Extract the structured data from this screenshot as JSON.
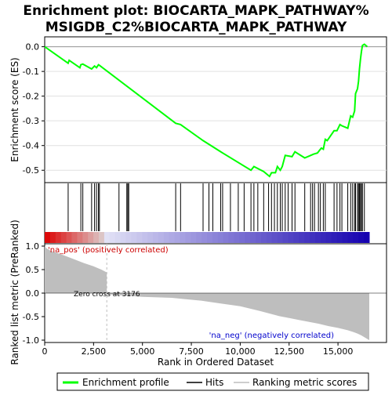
{
  "title_line1": "Enrichment plot: BIOCARTA_MAPK_PATHWAY%",
  "title_line2": "MSIGDB_C2%BIOCARTA_MAPK_PATHWAY",
  "colors": {
    "es_line": "#00ff00",
    "hits": "#000000",
    "metric_fill": "#bebebe",
    "pos_label": "#cc0000",
    "neg_label": "#0000cc",
    "zero_line": "#bebebe"
  },
  "legend": {
    "es": "Enrichment profile",
    "hits": "Hits",
    "metric": "Ranking metric scores"
  },
  "chart_data": {
    "type": "line",
    "n_genes": 16600,
    "es_panel": {
      "ylabel": "Enrichment score (ES)",
      "ylim": [
        -0.55,
        0.04
      ],
      "yticks": [
        0.0,
        -0.1,
        -0.2,
        -0.3,
        -0.4,
        -0.5
      ],
      "ytick_labels": [
        "0.0",
        "-0.1",
        "-0.2",
        "-0.3",
        "-0.4",
        "-0.5"
      ],
      "x": [
        0,
        1200,
        1250,
        1800,
        1850,
        1950,
        2400,
        2550,
        2650,
        2750,
        2800,
        6700,
        6950,
        8100,
        8400,
        9000,
        9100,
        10550,
        10700,
        11200,
        11500,
        11600,
        11800,
        11900,
        12050,
        12150,
        12300,
        12650,
        12800,
        13300,
        13600,
        13750,
        13950,
        14050,
        14150,
        14250,
        14350,
        14450,
        14800,
        14950,
        15100,
        15200,
        15500,
        15650,
        15750,
        15850,
        15900,
        16000,
        16050,
        16100,
        16150,
        16200,
        16250,
        16350,
        16500
      ],
      "y": [
        0.0,
        -0.067,
        -0.055,
        -0.085,
        -0.073,
        -0.07,
        -0.09,
        -0.078,
        -0.085,
        -0.073,
        -0.075,
        -0.31,
        -0.315,
        -0.38,
        -0.395,
        -0.425,
        -0.43,
        -0.5,
        -0.485,
        -0.505,
        -0.525,
        -0.51,
        -0.51,
        -0.485,
        -0.5,
        -0.485,
        -0.44,
        -0.445,
        -0.425,
        -0.45,
        -0.44,
        -0.435,
        -0.43,
        -0.42,
        -0.41,
        -0.415,
        -0.375,
        -0.38,
        -0.34,
        -0.34,
        -0.315,
        -0.32,
        -0.33,
        -0.28,
        -0.285,
        -0.26,
        -0.19,
        -0.17,
        -0.14,
        -0.09,
        -0.05,
        -0.02,
        0.005,
        0.01,
        0.0
      ]
    },
    "hits": [
      1200,
      1850,
      1950,
      2400,
      2550,
      2650,
      2750,
      2800,
      3800,
      4200,
      4250,
      4300,
      6700,
      6950,
      8100,
      8400,
      8600,
      9000,
      9100,
      9500,
      9900,
      10200,
      10550,
      10700,
      10900,
      11200,
      11450,
      11600,
      11750,
      11900,
      12050,
      12150,
      12300,
      12450,
      12650,
      12800,
      13300,
      13600,
      13700,
      13800,
      14000,
      14100,
      14250,
      14350,
      14800,
      14950,
      15100,
      15200,
      15500,
      15650,
      15750,
      15850,
      15900,
      16000,
      16050,
      16100,
      16150,
      16200,
      16250,
      16350
    ],
    "ranking_panel": {
      "ylabel": "Ranked list metric (PreRanked)",
      "xlabel": "Rank in Ordered Dataset",
      "ylim": [
        -1.05,
        1.05
      ],
      "yticks": [
        1.0,
        0.5,
        0.0,
        -0.5,
        -1.0
      ],
      "ytick_labels": [
        "1.0",
        "0.5",
        "0.0",
        "-0.5",
        "-1.0"
      ],
      "xticks": [
        0,
        2500,
        5000,
        7500,
        10000,
        12500,
        15000
      ],
      "xtick_labels": [
        "0",
        "2,500",
        "5,000",
        "7,500",
        "10,000",
        "12,500",
        "15,000"
      ],
      "metric_x": [
        0,
        100,
        300,
        600,
        1000,
        1500,
        2000,
        2500,
        2900,
        3176,
        3177,
        4000,
        5000,
        6500,
        7000,
        8000,
        9000,
        10000,
        11000,
        12000,
        12500,
        13000,
        13500,
        14000,
        14500,
        15000,
        15500,
        15800,
        16000,
        16200,
        16400,
        16600
      ],
      "metric_y": [
        1.0,
        0.95,
        0.9,
        0.86,
        0.8,
        0.72,
        0.64,
        0.57,
        0.5,
        0.44,
        -0.02,
        -0.05,
        -0.08,
        -0.1,
        -0.12,
        -0.16,
        -0.22,
        -0.28,
        -0.38,
        -0.49,
        -0.53,
        -0.57,
        -0.61,
        -0.65,
        -0.7,
        -0.74,
        -0.79,
        -0.83,
        -0.86,
        -0.9,
        -0.95,
        -1.0
      ],
      "zero_cross_label": "Zero cross at 3176",
      "zero_cross_x": 3176,
      "pos_label": "'na_pos' (positively correlated)",
      "neg_label": "'na_neg' (negatively correlated)"
    }
  }
}
